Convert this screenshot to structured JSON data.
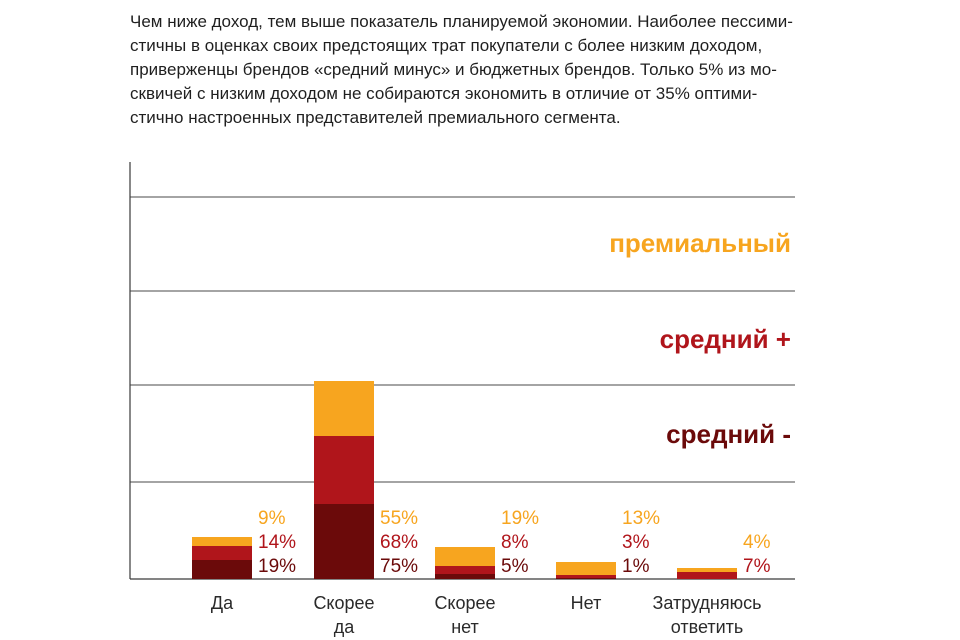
{
  "intro_lines": [
    "Чем ниже доход, тем выше показатель планируемой экономии. Наиболее пессими-",
    "стичны в оценках своих предстоящих трат покупатели с более низким доходом,",
    "приверженцы брендов «средний минус» и бюджетных брендов. Только 5% из мо-",
    "сквичей с низким доходом не собираются экономить в отличие от 35% оптими-",
    "стично настроенных представителей премиального сегмента."
  ],
  "chart_data": {
    "type": "bar",
    "stacked": true,
    "categories": [
      [
        "Да"
      ],
      [
        "Скорее",
        "да"
      ],
      [
        "Скорее",
        "нет"
      ],
      [
        "Нет"
      ],
      [
        "Затрудняюсь",
        "ответить"
      ]
    ],
    "series": [
      {
        "name": "средний -",
        "color": "#6b0a0a",
        "values": [
          19,
          75,
          5,
          1,
          null
        ],
        "labels": [
          "19%",
          "75%",
          "5%",
          "1%",
          ""
        ]
      },
      {
        "name": "средний +",
        "color": "#b0151b",
        "values": [
          14,
          68,
          8,
          3,
          7
        ],
        "labels": [
          "14%",
          "68%",
          "8%",
          "3%",
          "7%"
        ]
      },
      {
        "name": "премиальный",
        "color": "#f7a51f",
        "values": [
          9,
          55,
          19,
          13,
          4
        ],
        "labels": [
          "9%",
          "55%",
          "19%",
          "13%",
          "4%"
        ]
      }
    ],
    "gridlines": true,
    "legend_placement": "right, inside plot"
  }
}
